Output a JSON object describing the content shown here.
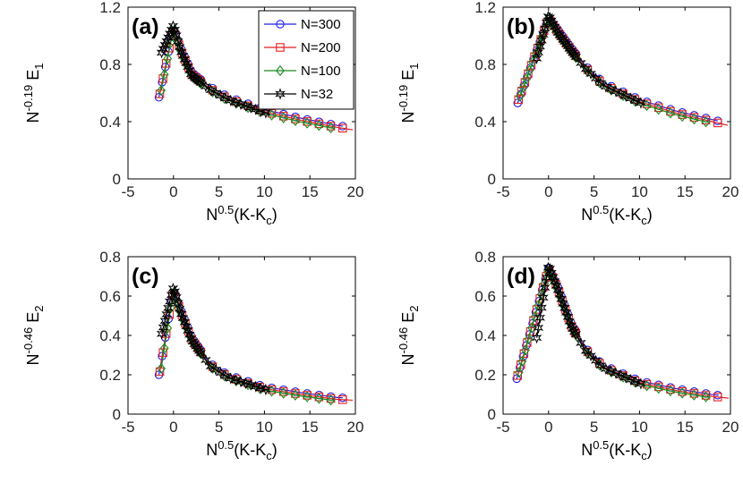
{
  "figure": {
    "colors": {
      "N=300": "#1f1fe6",
      "N=200": "#e61f1f",
      "N=100": "#1a8a1a",
      "N=32": "#000000"
    },
    "markers": {
      "N=300": "circle",
      "N=200": "square",
      "N=100": "diamond",
      "N=32": "hexagram"
    },
    "legend": [
      "N=300",
      "N=200",
      "N=100",
      "N=32"
    ]
  },
  "chart_data": [
    {
      "type": "line",
      "panel_label": "(a)",
      "xlabel": {
        "base": "N",
        "sup": "0.5",
        "text": "(K-K",
        "sub": "c",
        "tail": ")"
      },
      "ylabel": {
        "base": "N",
        "sup": "-0.19",
        "text": " E",
        "sub": "1"
      },
      "xlim": [
        -5,
        20
      ],
      "ylim": [
        0,
        1.2
      ],
      "xticks": [
        "-5",
        "0",
        "5",
        "10",
        "15",
        "20"
      ],
      "yticks": [
        "0",
        "0.4",
        "0.8",
        "1.2"
      ],
      "ytick_values": [
        0,
        0.4,
        0.8,
        1.2
      ],
      "peak": [
        0,
        1.05
      ],
      "xmin": -1.6,
      "ymin_start": 0.57,
      "decay": [
        [
          0.8,
          0.9
        ],
        [
          2,
          0.73
        ],
        [
          4,
          0.63
        ],
        [
          6,
          0.56
        ],
        [
          10,
          0.47
        ],
        [
          14,
          0.41
        ],
        [
          18,
          0.36
        ],
        [
          20,
          0.34
        ]
      ],
      "legend": true
    },
    {
      "type": "line",
      "panel_label": "(b)",
      "xlabel": {
        "base": "N",
        "sup": "0.5",
        "text": "(K-K",
        "sub": "c",
        "tail": ")"
      },
      "ylabel": {
        "base": "N",
        "sup": "-0.19",
        "text": " E",
        "sub": "1"
      },
      "xlim": [
        -5,
        20
      ],
      "ylim": [
        0,
        1.2
      ],
      "xticks": [
        "-5",
        "0",
        "5",
        "10",
        "15",
        "20"
      ],
      "yticks": [
        "0",
        "0.4",
        "0.8",
        "1.2"
      ],
      "ytick_values": [
        0,
        0.4,
        0.8,
        1.2
      ],
      "peak": [
        0,
        1.12
      ],
      "xmin": -3.4,
      "ymin_start": 0.53,
      "decay": [
        [
          1,
          1.03
        ],
        [
          2.5,
          0.9
        ],
        [
          4,
          0.78
        ],
        [
          6,
          0.66
        ],
        [
          10,
          0.54
        ],
        [
          14,
          0.46
        ],
        [
          18,
          0.4
        ],
        [
          20,
          0.37
        ]
      ],
      "legend": false
    },
    {
      "type": "line",
      "panel_label": "(c)",
      "xlabel": {
        "base": "N",
        "sup": "0.5",
        "text": "(K-K",
        "sub": "c",
        "tail": ")"
      },
      "ylabel": {
        "base": "N",
        "sup": "-0.46",
        "text": " E",
        "sub": "2"
      },
      "xlim": [
        -5,
        20
      ],
      "ylim": [
        0,
        0.8
      ],
      "xticks": [
        "-5",
        "0",
        "5",
        "10",
        "15",
        "20"
      ],
      "yticks": [
        "0",
        "0.2",
        "0.4",
        "0.6",
        "0.8"
      ],
      "ytick_values": [
        0,
        0.2,
        0.4,
        0.6,
        0.8
      ],
      "peak": [
        0,
        0.63
      ],
      "xmin": -1.6,
      "ymin_start": 0.2,
      "decay": [
        [
          0.8,
          0.52
        ],
        [
          2,
          0.38
        ],
        [
          4,
          0.25
        ],
        [
          6,
          0.19
        ],
        [
          10,
          0.13
        ],
        [
          14,
          0.1
        ],
        [
          18,
          0.075
        ],
        [
          20,
          0.07
        ]
      ],
      "legend": false
    },
    {
      "type": "line",
      "panel_label": "(d)",
      "xlabel": {
        "base": "N",
        "sup": "0.5",
        "text": "(K-K",
        "sub": "c",
        "tail": ")"
      },
      "ylabel": {
        "base": "N",
        "sup": "-0.46",
        "text": " E",
        "sub": "2"
      },
      "xlim": [
        -5,
        20
      ],
      "ylim": [
        0,
        0.8
      ],
      "xticks": [
        "-5",
        "0",
        "5",
        "10",
        "15",
        "20"
      ],
      "yticks": [
        "0",
        "0.2",
        "0.4",
        "0.6",
        "0.8"
      ],
      "ytick_values": [
        0,
        0.2,
        0.4,
        0.6,
        0.8
      ],
      "peak": [
        0,
        0.74
      ],
      "xmin": -3.5,
      "ymin_start": 0.18,
      "decay": [
        [
          1,
          0.64
        ],
        [
          2.5,
          0.45
        ],
        [
          4,
          0.33
        ],
        [
          6,
          0.24
        ],
        [
          10,
          0.16
        ],
        [
          14,
          0.12
        ],
        [
          18,
          0.09
        ],
        [
          20,
          0.08
        ]
      ],
      "legend": false
    }
  ]
}
